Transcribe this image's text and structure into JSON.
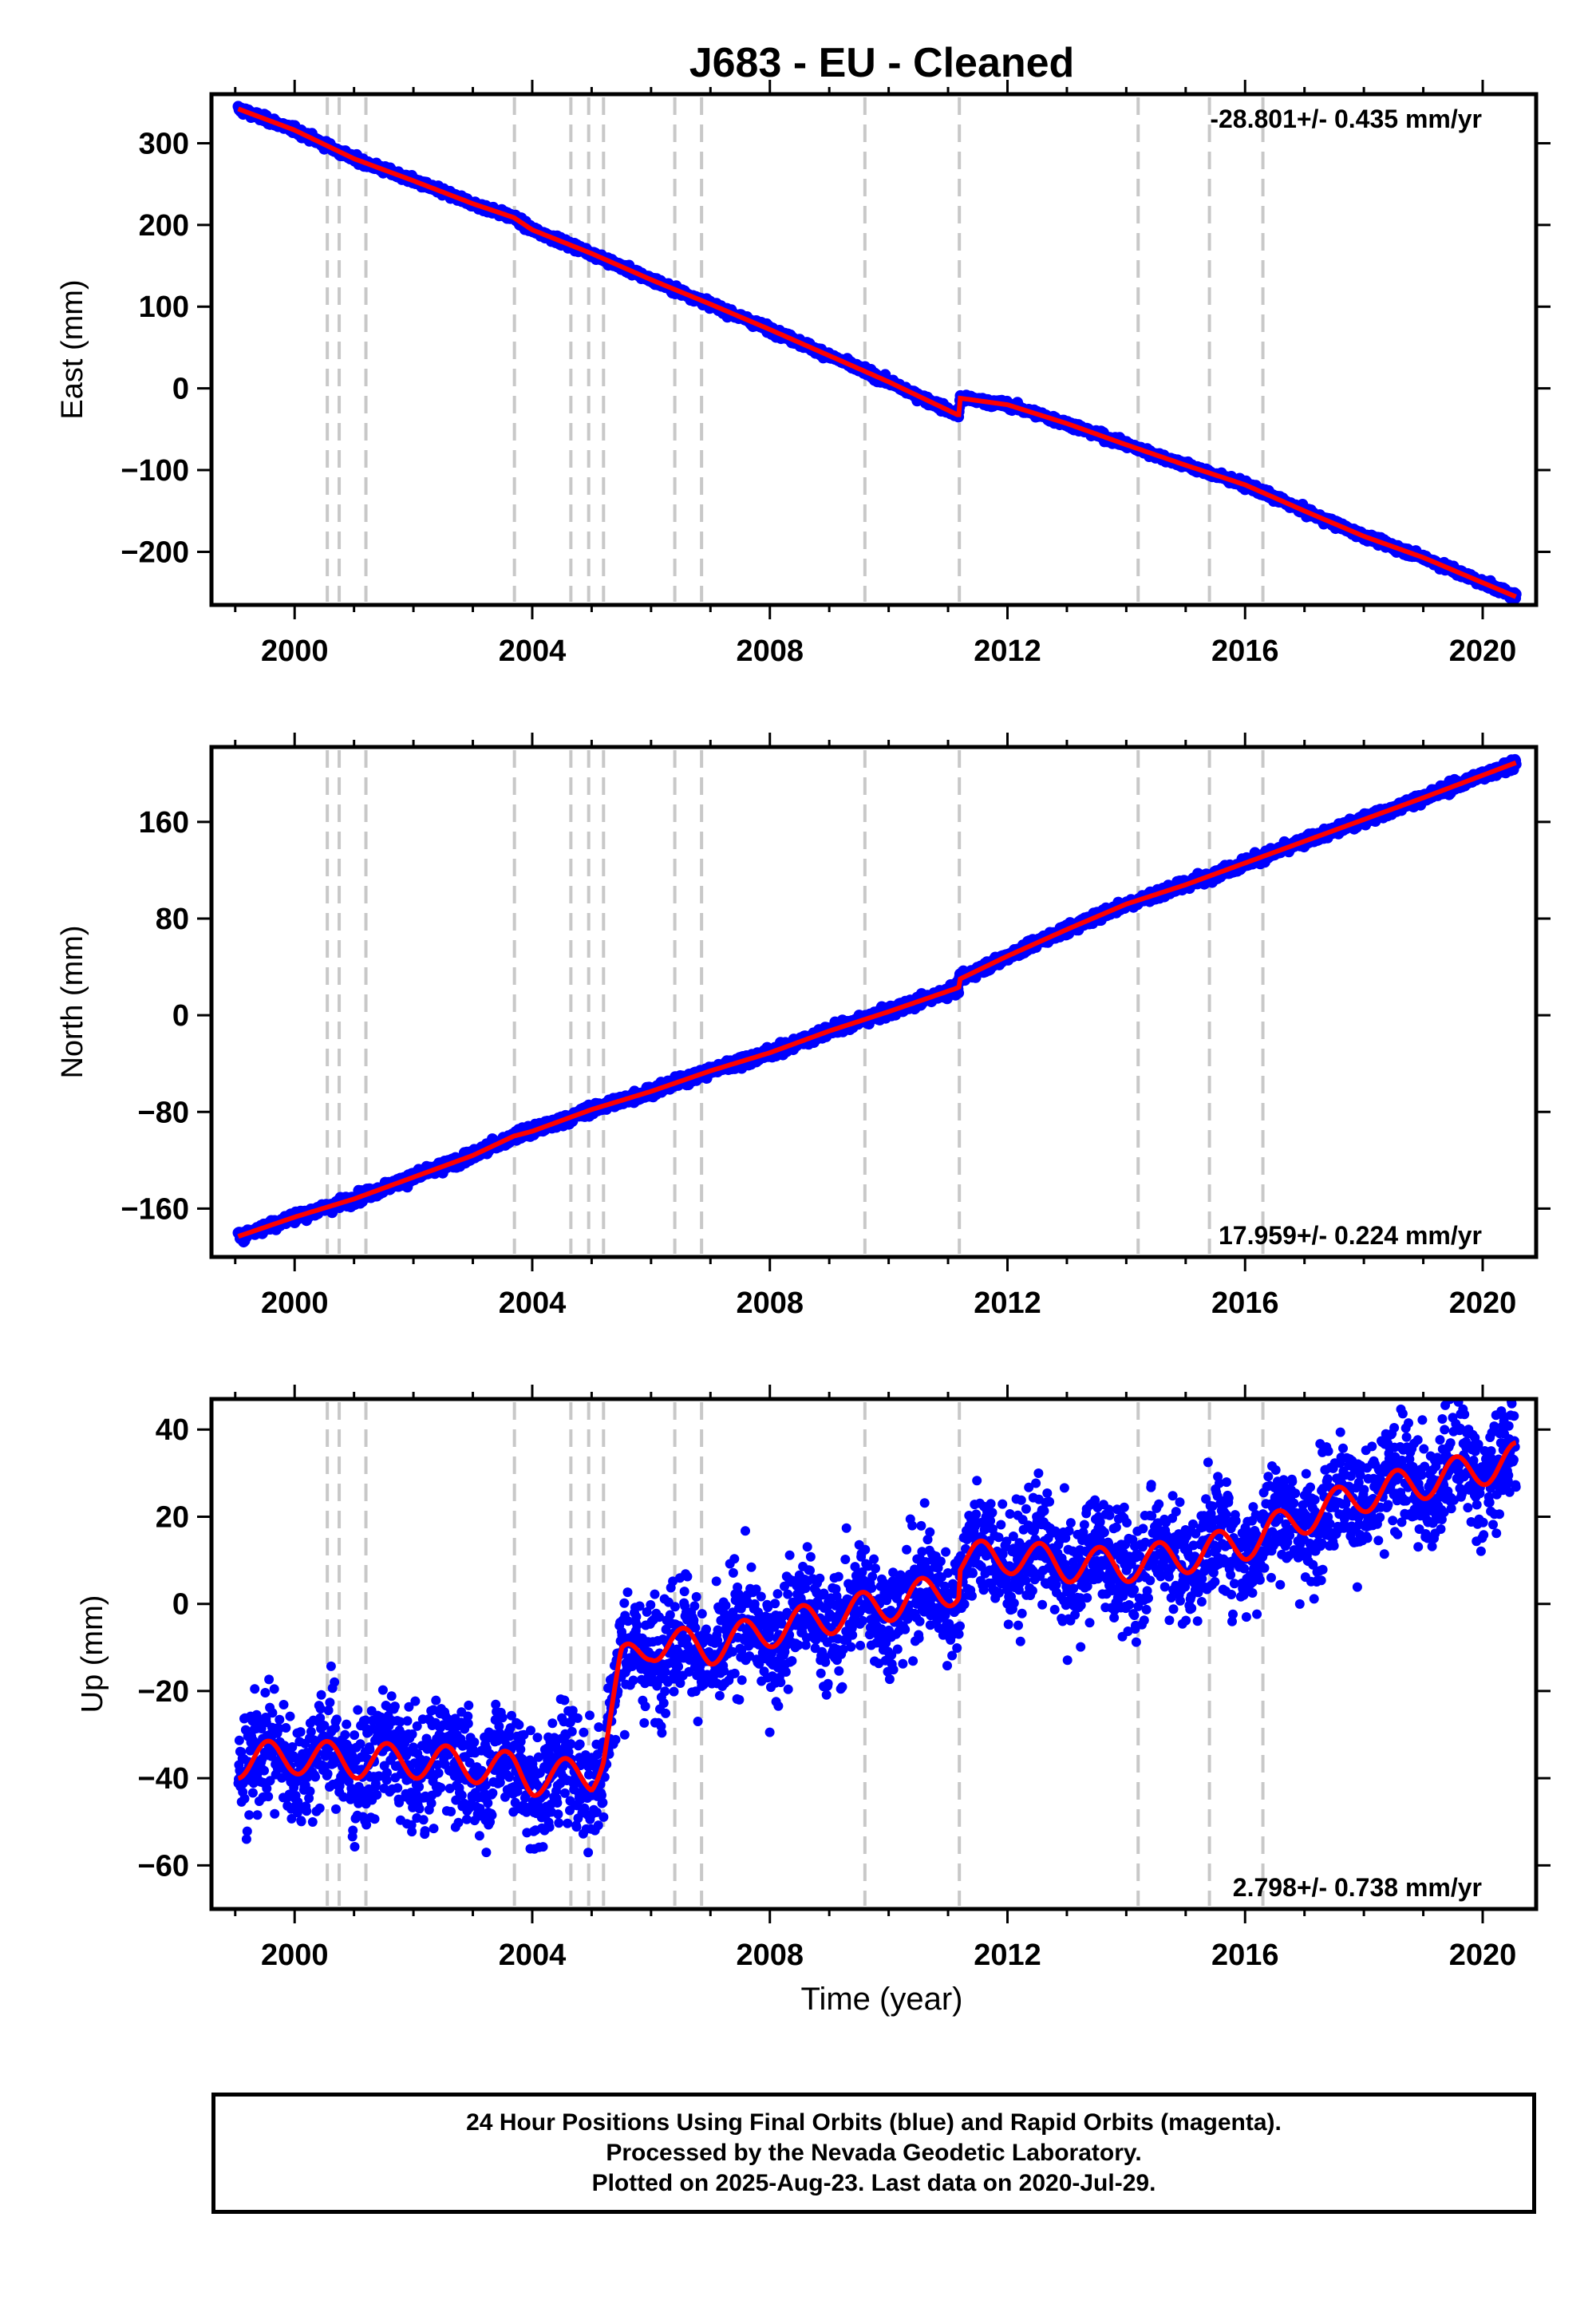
{
  "title": "J683  - EU - Cleaned",
  "x_axis_label": "Time (year)",
  "footer": {
    "line1": "24 Hour Positions Using Final Orbits (blue) and Rapid Orbits (magenta).",
    "line2": "Processed by the Nevada Geodetic Laboratory.",
    "line3": "Plotted on 2025-Aug-23. Last data on 2020-Jul-29."
  },
  "colors": {
    "data_points": "#0000ff",
    "model_line": "#ff0000",
    "event_lines": "#c8c8c8",
    "frame": "#000000"
  },
  "chart_data": [
    {
      "type": "scatter",
      "component": "East",
      "ylabel": "East (mm)",
      "rate_label": "-28.801+/- 0.435 mm/yr",
      "rate_position": "top-right",
      "xlim": [
        1998.6,
        2020.9
      ],
      "ylim": [
        -265,
        360
      ],
      "xticks": [
        2000,
        2004,
        2008,
        2012,
        2016,
        2020
      ],
      "yticks": [
        -200,
        -100,
        0,
        100,
        200,
        300
      ],
      "ytick_labels": [
        "−200",
        "−100",
        "0",
        "100",
        "200",
        "300"
      ],
      "event_years": [
        2000.55,
        2000.75,
        2001.2,
        2003.7,
        2004.65,
        2004.95,
        2005.2,
        2006.4,
        2006.85,
        2009.6,
        2011.19,
        2014.2,
        2015.4,
        2016.3
      ],
      "series": [
        {
          "name": "",
          "x": [
            1999.05,
            2000.0,
            2001.0,
            2002.0,
            2003.0,
            2003.69,
            2004.0,
            2005.0,
            2006.0,
            2007.0,
            2008.0,
            2009.0,
            2010.0,
            2011.18,
            2011.2,
            2012.0,
            2013.0,
            2014.0,
            2015.0,
            2016.0,
            2017.0,
            2018.0,
            2019.0,
            2020.56
          ],
          "y": [
            342,
            316,
            281,
            254,
            226,
            209,
            194,
            165,
            133,
            103,
            72,
            40,
            8,
            -33,
            -12,
            -20,
            -43,
            -69,
            -94,
            -118,
            -150,
            -181,
            -207,
            -255
          ]
        }
      ]
    },
    {
      "type": "scatter",
      "component": "North",
      "ylabel": "North (mm)",
      "rate_label": "17.959+/- 0.224 mm/yr",
      "rate_position": "bottom-right",
      "xlim": [
        1998.6,
        2020.9
      ],
      "ylim": [
        -200,
        222
      ],
      "xticks": [
        2000,
        2004,
        2008,
        2012,
        2016,
        2020
      ],
      "yticks": [
        -160,
        -80,
        0,
        80,
        160
      ],
      "ytick_labels": [
        "−160",
        "−80",
        "0",
        "80",
        "160"
      ],
      "event_years": [
        2000.55,
        2000.75,
        2001.2,
        2003.7,
        2004.65,
        2004.95,
        2005.2,
        2006.4,
        2006.85,
        2009.6,
        2011.19,
        2014.2,
        2015.4,
        2016.3
      ],
      "series": [
        {
          "name": "",
          "x": [
            1999.05,
            2000.0,
            2001.0,
            2002.0,
            2003.0,
            2003.69,
            2004.0,
            2005.0,
            2006.0,
            2007.0,
            2008.0,
            2009.0,
            2010.0,
            2011.18,
            2011.2,
            2012.0,
            2013.0,
            2014.0,
            2015.0,
            2016.0,
            2017.0,
            2018.0,
            2019.0,
            2020.56
          ],
          "y": [
            -183,
            -167,
            -152,
            -134,
            -116,
            -100,
            -96,
            -78,
            -63,
            -46,
            -31,
            -13,
            3,
            23,
            30,
            49,
            71,
            92,
            108,
            126,
            144,
            162,
            180,
            209
          ]
        }
      ]
    },
    {
      "type": "scatter",
      "component": "Up",
      "ylabel": "Up (mm)",
      "rate_label": "2.798+/- 0.738 mm/yr",
      "rate_position": "bottom-right",
      "xlim": [
        1998.6,
        2020.9
      ],
      "ylim": [
        -70,
        47
      ],
      "xticks": [
        2000,
        2004,
        2008,
        2012,
        2016,
        2020
      ],
      "yticks": [
        -60,
        -40,
        -20,
        0,
        20,
        40
      ],
      "ytick_labels": [
        "−60",
        "−40",
        "−20",
        "0",
        "20",
        "40"
      ],
      "event_years": [
        2000.55,
        2000.75,
        2001.2,
        2003.7,
        2004.65,
        2004.95,
        2005.2,
        2006.4,
        2006.85,
        2009.6,
        2011.19,
        2014.2,
        2015.4,
        2016.3
      ],
      "series": [
        {
          "name": "",
          "x": [
            1999.05,
            2000.0,
            2001.0,
            2002.0,
            2003.0,
            2003.69,
            2004.0,
            2005.0,
            2005.2,
            2005.5,
            2006.0,
            2007.0,
            2008.0,
            2009.0,
            2010.0,
            2011.18,
            2011.2,
            2012.0,
            2013.0,
            2014.0,
            2015.0,
            2016.0,
            2017.0,
            2018.0,
            2019.0,
            2020.56
          ],
          "y": [
            -36,
            -35,
            -36,
            -36,
            -37,
            -38,
            -40,
            -39,
            -34,
            -14,
            -9,
            -10,
            -6,
            -3,
            0,
            4,
            10,
            11,
            9,
            9,
            11,
            14,
            20,
            25,
            28,
            33
          ]
        }
      ]
    }
  ]
}
